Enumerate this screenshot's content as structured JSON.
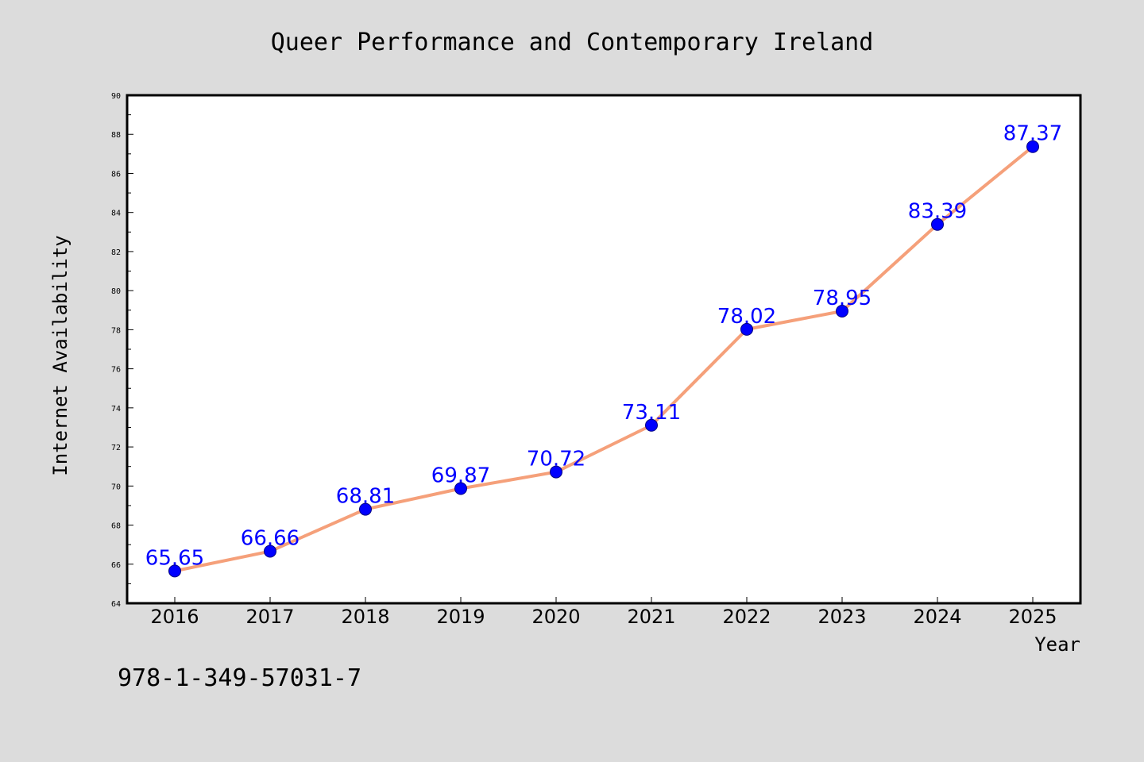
{
  "chart_data": {
    "type": "line",
    "title": "Queer Performance and Contemporary Ireland",
    "xlabel": "Year",
    "ylabel": "Internet Availability",
    "categories": [
      "2016",
      "2017",
      "2018",
      "2019",
      "2020",
      "2021",
      "2022",
      "2023",
      "2024",
      "2025"
    ],
    "series": [
      {
        "values": [
          65.65,
          66.66,
          68.81,
          69.87,
          70.72,
          73.11,
          78.02,
          78.95,
          83.39,
          87.37
        ]
      }
    ],
    "data_labels": [
      "65.65",
      "66.66",
      "68.81",
      "69.87",
      "70.72",
      "73.11",
      "78.02",
      "78.95",
      "83.39",
      "87.37"
    ],
    "ylim": [
      64,
      90
    ],
    "yticks": [
      64,
      66,
      68,
      70,
      72,
      74,
      76,
      78,
      80,
      82,
      84,
      86,
      88,
      90
    ],
    "grid": false,
    "legend": "none",
    "colors": {
      "line": "#f5a07a",
      "marker": "#0000ff",
      "marker_edge": "#000080",
      "data_label": "#0000ff",
      "plot_background": "#ffffff",
      "figure_background": "#dcdcdc"
    }
  },
  "footer": {
    "isbn": "978-1-349-57031-7"
  }
}
